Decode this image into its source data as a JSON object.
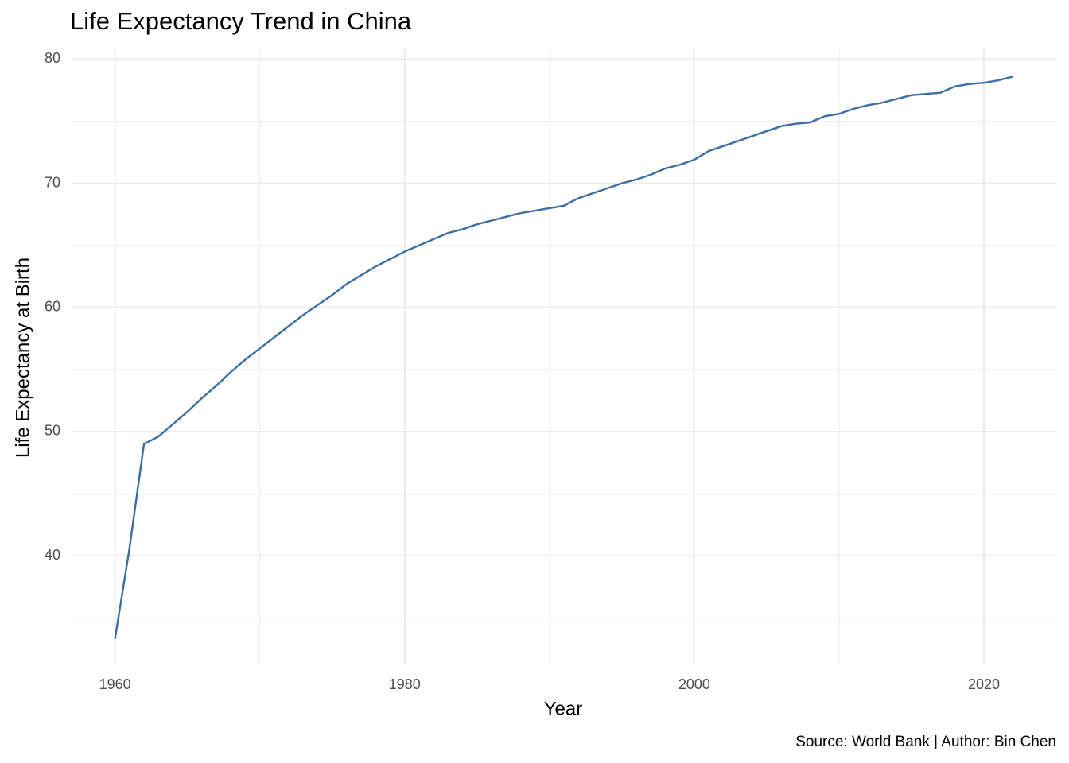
{
  "chart_data": {
    "type": "line",
    "title": "Life Expectancy Trend in China",
    "x_label": "Year",
    "y_label": "Life Expectancy at Birth",
    "caption": "Source: World Bank | Author: Bin Chen",
    "x": [
      1960,
      1961,
      1962,
      1963,
      1964,
      1965,
      1966,
      1967,
      1968,
      1969,
      1970,
      1971,
      1972,
      1973,
      1974,
      1975,
      1976,
      1977,
      1978,
      1979,
      1980,
      1981,
      1982,
      1983,
      1984,
      1985,
      1986,
      1987,
      1988,
      1989,
      1990,
      1991,
      1992,
      1993,
      1994,
      1995,
      1996,
      1997,
      1998,
      1999,
      2000,
      2001,
      2002,
      2003,
      2004,
      2005,
      2006,
      2007,
      2008,
      2009,
      2010,
      2011,
      2012,
      2013,
      2014,
      2015,
      2016,
      2017,
      2018,
      2019,
      2020,
      2021,
      2022
    ],
    "series": [
      {
        "name": "Life expectancy",
        "color": "#3b6ea5",
        "values": [
          33.3,
          40.6,
          49.0,
          49.6,
          50.6,
          51.6,
          52.7,
          53.7,
          54.8,
          55.8,
          56.7,
          57.6,
          58.5,
          59.4,
          60.2,
          61.0,
          61.9,
          62.6,
          63.3,
          63.9,
          64.5,
          65.0,
          65.5,
          66.0,
          66.3,
          66.7,
          67.0,
          67.3,
          67.6,
          67.8,
          68.0,
          68.2,
          68.8,
          69.2,
          69.6,
          70.0,
          70.3,
          70.7,
          71.2,
          71.5,
          71.9,
          72.6,
          73.0,
          73.4,
          73.8,
          74.2,
          74.6,
          74.8,
          74.9,
          75.4,
          75.6,
          76.0,
          76.3,
          76.5,
          76.8,
          77.1,
          77.2,
          77.3,
          77.8,
          78.0,
          78.1,
          78.3,
          78.6
        ]
      }
    ],
    "xlim": [
      1957,
      2025
    ],
    "xticks": [
      1960,
      1980,
      2000,
      2020
    ],
    "ylim": [
      31.3,
      80.8
    ],
    "yticks": [
      40,
      50,
      60,
      70,
      80
    ],
    "grid": true,
    "minor_grid": true
  }
}
